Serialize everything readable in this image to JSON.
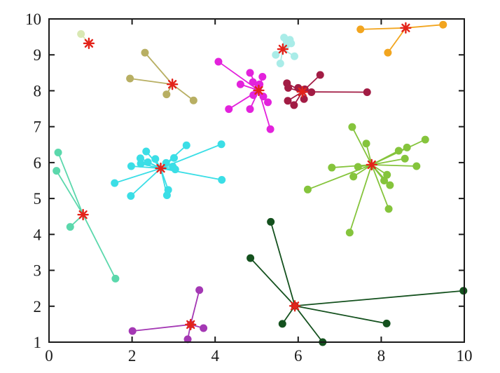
{
  "figure": {
    "background": "#ffffff",
    "axis_color": "#1a1a1a",
    "tick_label_color": "#1a1a1a",
    "tick_font_size": 23
  },
  "chart_data": {
    "type": "scatter",
    "title": "",
    "xlabel": "",
    "ylabel": "",
    "xlim": [
      0,
      10
    ],
    "ylim": [
      1,
      10
    ],
    "grid": false,
    "legend": false,
    "x_tick_values": [
      0,
      2,
      4,
      6,
      8,
      10
    ],
    "x_tick_labels": [
      "0",
      "2",
      "4",
      "6",
      "8",
      "10"
    ],
    "x_minor_top_ticks": [
      2,
      4,
      6,
      8
    ],
    "y_tick_values": [
      1,
      2,
      3,
      4,
      5,
      6,
      7,
      8,
      9,
      10
    ],
    "y_tick_labels": [
      "1",
      "2",
      "3",
      "4",
      "5",
      "6",
      "7",
      "8",
      "9",
      "10"
    ],
    "y_minor_right_ticks": [
      2,
      3,
      4,
      5,
      6,
      7,
      8,
      9
    ],
    "description": "Clustering result scatter plot: colored point clusters connected by lines to red asterisk centroids",
    "center_marker": {
      "shape": "asterisk",
      "color": "#e3231a",
      "radius": 7
    },
    "point_radius": 5.5,
    "line_width": 1.8,
    "clusters": [
      {
        "name": "pale-green",
        "color": "#d9e8b3",
        "center": [
          0.96,
          9.32
        ],
        "points": [
          [
            0.77,
            9.58
          ]
        ]
      },
      {
        "name": "olive",
        "color": "#b8af63",
        "center": [
          2.97,
          8.18
        ],
        "points": [
          [
            2.31,
            9.06
          ],
          [
            1.95,
            8.34
          ],
          [
            2.83,
            7.9
          ],
          [
            3.48,
            7.73
          ]
        ]
      },
      {
        "name": "magenta",
        "color": "#e322dc",
        "center": [
          5.05,
          8.01
        ],
        "points": [
          [
            4.08,
            8.81
          ],
          [
            4.84,
            8.5
          ],
          [
            5.14,
            8.39
          ],
          [
            4.91,
            8.24
          ],
          [
            4.61,
            8.18
          ],
          [
            5.07,
            8.18
          ],
          [
            5.03,
            8.05
          ],
          [
            4.92,
            7.88
          ],
          [
            5.16,
            7.84
          ],
          [
            5.27,
            7.68
          ],
          [
            4.33,
            7.49
          ],
          [
            4.84,
            7.49
          ],
          [
            5.33,
            6.93
          ]
        ]
      },
      {
        "name": "pale-turquoise",
        "color": "#a9ece8",
        "center": [
          5.63,
          9.16
        ],
        "points": [
          [
            5.66,
            9.48
          ],
          [
            5.8,
            9.42
          ],
          [
            5.83,
            9.32
          ],
          [
            5.72,
            9.28
          ],
          [
            5.46,
            9.0
          ],
          [
            5.91,
            8.96
          ],
          [
            5.57,
            8.76
          ]
        ]
      },
      {
        "name": "dark-red",
        "color": "#a21c44",
        "center": [
          6.1,
          7.97
        ],
        "points": [
          [
            6.53,
            8.44
          ],
          [
            5.73,
            8.21
          ],
          [
            5.76,
            8.08
          ],
          [
            6.0,
            8.08
          ],
          [
            6.16,
            8.04
          ],
          [
            6.32,
            7.96
          ],
          [
            7.66,
            7.96
          ],
          [
            6.14,
            7.77
          ],
          [
            5.75,
            7.72
          ],
          [
            5.9,
            7.6
          ]
        ]
      },
      {
        "name": "orange",
        "color": "#f2a51f",
        "center": [
          8.59,
          9.75
        ],
        "points": [
          [
            7.5,
            9.71
          ],
          [
            9.49,
            9.84
          ],
          [
            8.16,
            9.06
          ]
        ]
      },
      {
        "name": "aquamarine",
        "color": "#5bd8ac",
        "center": [
          0.82,
          4.55
        ],
        "points": [
          [
            0.22,
            6.28
          ],
          [
            0.18,
            5.77
          ],
          [
            0.51,
            4.21
          ],
          [
            1.6,
            2.77
          ]
        ]
      },
      {
        "name": "cyan",
        "color": "#3bdee6",
        "center": [
          2.69,
          5.84
        ],
        "points": [
          [
            2.34,
            6.31
          ],
          [
            2.2,
            6.12
          ],
          [
            2.21,
            5.97
          ],
          [
            1.98,
            5.9
          ],
          [
            2.56,
            6.1
          ],
          [
            2.38,
            6.01
          ],
          [
            2.82,
            5.99
          ],
          [
            3.01,
            6.13
          ],
          [
            3.31,
            6.48
          ],
          [
            4.15,
            6.51
          ],
          [
            2.98,
            5.89
          ],
          [
            3.04,
            5.81
          ],
          [
            1.58,
            5.43
          ],
          [
            4.16,
            5.52
          ],
          [
            1.97,
            5.07
          ],
          [
            2.87,
            5.24
          ],
          [
            2.84,
            5.09
          ]
        ]
      },
      {
        "name": "yellow-green",
        "color": "#85c43c",
        "center": [
          7.77,
          5.94
        ],
        "points": [
          [
            7.3,
            6.99
          ],
          [
            7.64,
            6.53
          ],
          [
            8.42,
            6.33
          ],
          [
            8.62,
            6.42
          ],
          [
            9.06,
            6.64
          ],
          [
            8.57,
            6.11
          ],
          [
            8.85,
            5.9
          ],
          [
            6.81,
            5.86
          ],
          [
            7.44,
            5.88
          ],
          [
            7.33,
            5.61
          ],
          [
            6.23,
            5.25
          ],
          [
            8.14,
            5.66
          ],
          [
            8.07,
            5.5
          ],
          [
            8.21,
            5.37
          ],
          [
            8.18,
            4.71
          ],
          [
            7.24,
            4.05
          ]
        ]
      },
      {
        "name": "purple",
        "color": "#a438b4",
        "center": [
          3.41,
          1.49
        ],
        "center_dot_color": "#c9356e",
        "points": [
          [
            3.62,
            2.45
          ],
          [
            2.01,
            1.31
          ],
          [
            3.72,
            1.39
          ],
          [
            3.34,
            1.08
          ]
        ]
      },
      {
        "name": "dark-green",
        "color": "#14511e",
        "center": [
          5.92,
          2.01
        ],
        "center_dot_color": "#8b261c",
        "points": [
          [
            5.34,
            4.35
          ],
          [
            4.85,
            3.34
          ],
          [
            6.59,
            1.0
          ],
          [
            5.62,
            1.51
          ],
          [
            8.13,
            1.52
          ],
          [
            9.98,
            2.43
          ]
        ]
      }
    ]
  }
}
